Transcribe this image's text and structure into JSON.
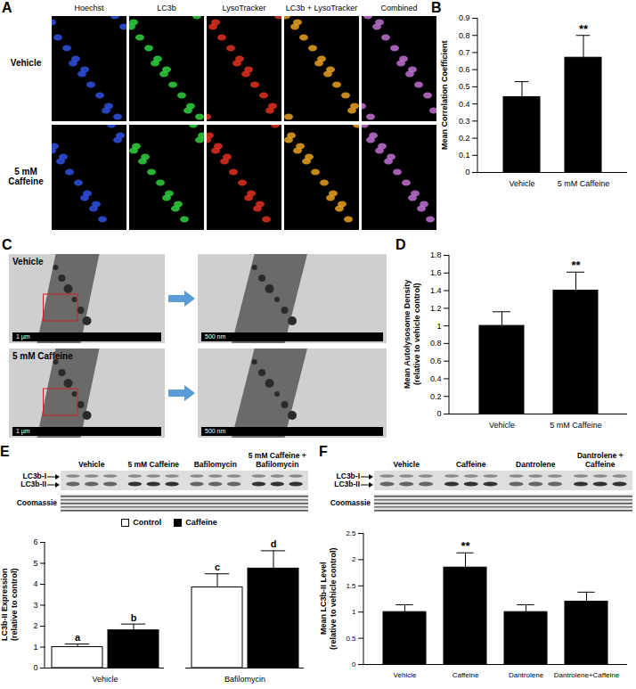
{
  "figure": {
    "A": {
      "panel": "A",
      "columns": [
        "Hoechst",
        "LC3b",
        "LysoTracker",
        "LC3b + LysoTracker",
        "Combined"
      ],
      "rows": [
        "Vehicle",
        "5 mM Caffeine"
      ]
    },
    "C": {
      "panel": "C",
      "rows": [
        "Vehicle",
        "5 mM Caffeine"
      ],
      "scale_bars": [
        "1 µm",
        "500 nm"
      ]
    }
  },
  "chart_data": [
    {
      "panel": "B",
      "type": "bar",
      "categories": [
        "Vehicle",
        "5 mM Caffeine"
      ],
      "values": [
        0.44,
        0.67
      ],
      "errors": [
        0.09,
        0.13
      ],
      "annotations": [
        null,
        "**"
      ],
      "color": "#000000",
      "ylabel": "Mean Correlation Coefficient",
      "ylim": [
        0,
        0.9
      ],
      "yticks": [
        0,
        0.1,
        0.2,
        0.3,
        0.4,
        0.5,
        0.6,
        0.7,
        0.8,
        0.9
      ]
    },
    {
      "panel": "D",
      "type": "bar",
      "categories": [
        "Vehicle",
        "5 mM Caffeine"
      ],
      "values": [
        1.0,
        1.4
      ],
      "errors": [
        0.16,
        0.21
      ],
      "annotations": [
        null,
        "**"
      ],
      "color": "#000000",
      "ylabel": "Mean Autolysosome Density\n(relative to vehicle control)",
      "ylim": [
        0,
        1.8
      ],
      "yticks": [
        0,
        0.2,
        0.4,
        0.6,
        0.8,
        1,
        1.2,
        1.4,
        1.6,
        1.8
      ]
    },
    {
      "panel": "E",
      "type": "bar",
      "categories": [
        "Vehicle",
        "Bafilomycin"
      ],
      "series": [
        {
          "name": "Control",
          "color": "#ffffff",
          "values": [
            1.0,
            3.85
          ],
          "errors": [
            0.15,
            0.65
          ],
          "letters": [
            "a",
            "c"
          ]
        },
        {
          "name": "Caffeine",
          "color": "#000000",
          "values": [
            1.8,
            4.75
          ],
          "errors": [
            0.3,
            0.85
          ],
          "letters": [
            "b",
            "d"
          ]
        }
      ],
      "legend": "top",
      "ylabel": "LC3b-II Expression\n(relative to control)",
      "ylim": [
        0,
        6
      ],
      "yticks": [
        0,
        1,
        2,
        3,
        4,
        5,
        6
      ],
      "blot": {
        "lanes": [
          "Vehicle",
          "5 mM Caffeine",
          "Bafilomycin",
          "5 mM Caffeine + Bafilomycin"
        ],
        "bands": [
          "LC3b-I",
          "LC3b-II"
        ],
        "stain": "Coomassie"
      }
    },
    {
      "panel": "F",
      "type": "bar",
      "categories": [
        "Vehicle",
        "Caffeine",
        "Dantrolene",
        "Dantrolene+Caffeine"
      ],
      "values": [
        1.0,
        1.85,
        1.0,
        1.2
      ],
      "errors": [
        0.14,
        0.28,
        0.14,
        0.18
      ],
      "annotations": [
        null,
        "**",
        null,
        null
      ],
      "color": "#000000",
      "ylabel": "Mean LC3b-II Level\n(relative to vehicle control)",
      "ylim": [
        0,
        2.5
      ],
      "yticks": [
        0,
        0.5,
        1,
        1.5,
        2,
        2.5
      ],
      "blot": {
        "lanes": [
          "Vehicle",
          "Caffeine",
          "Dantrolene",
          "Dantrolene + Caffeine"
        ],
        "bands": [
          "LC3b-I",
          "LC3b-II"
        ],
        "stain": "Coomassie"
      }
    }
  ]
}
